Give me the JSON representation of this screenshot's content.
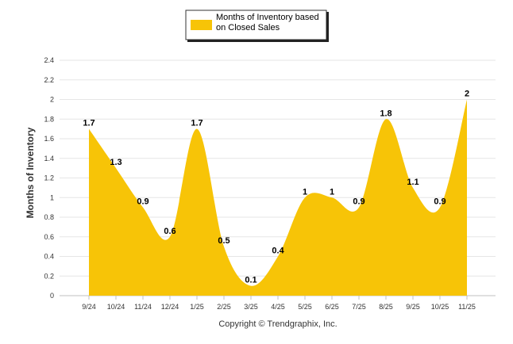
{
  "chart_data": {
    "type": "area",
    "categories": [
      "9/24",
      "10/24",
      "11/24",
      "12/24",
      "1/25",
      "2/25",
      "3/25",
      "4/25",
      "5/25",
      "6/25",
      "7/25",
      "8/25",
      "9/25",
      "10/25",
      "11/25"
    ],
    "series": [
      {
        "name": "Months of Inventory based on Closed Sales",
        "values": [
          1.7,
          1.3,
          0.9,
          0.6,
          1.7,
          0.5,
          0.1,
          0.4,
          1,
          1,
          0.9,
          1.8,
          1.1,
          0.9,
          2
        ],
        "color": "#F7C407"
      }
    ],
    "data_labels": [
      "1.7",
      "1.3",
      "0.9",
      "0.6",
      "1.7",
      "0.5",
      "0.1",
      "0.4",
      "1",
      "1",
      "0.9",
      "1.8",
      "1.1",
      "0.9",
      "2"
    ],
    "ylabel": "Months of Inventory",
    "xlabel": "",
    "ylim": [
      0,
      2.4
    ],
    "yticks": [
      "0",
      "0.2",
      "0.4",
      "0.6",
      "0.8",
      "1",
      "1.2",
      "1.4",
      "1.6",
      "1.8",
      "2",
      "2.2",
      "2.4"
    ],
    "legend": {
      "label_line1": "Months of Inventory based",
      "label_line2": "on Closed Sales",
      "placement": "top-center"
    },
    "footer": "Copyright © Trendgraphix, Inc.",
    "grid": true,
    "colors": {
      "fill": "#F7C407",
      "grid": "#e6e6e6",
      "axis": "#c0c0c0"
    }
  }
}
